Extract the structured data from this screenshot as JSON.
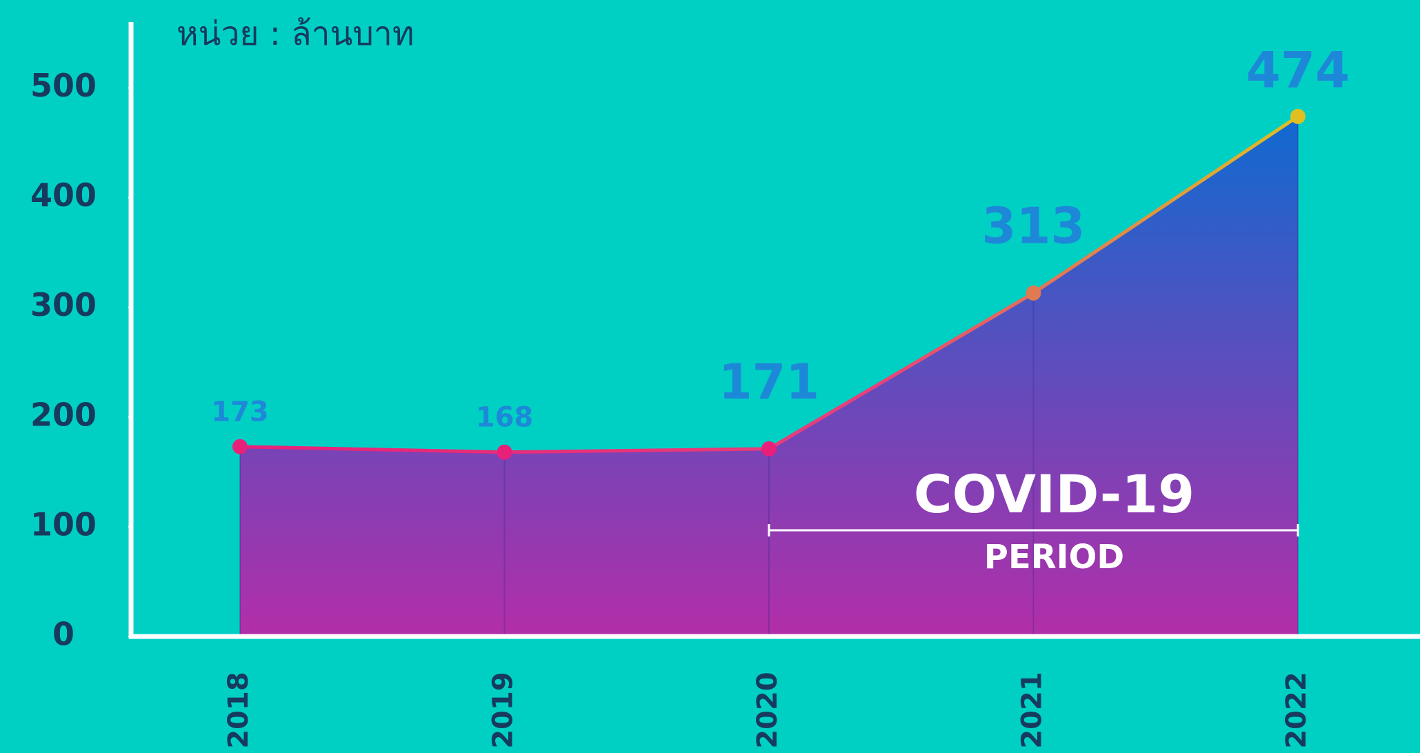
{
  "chart_data": {
    "type": "area",
    "y_label": "หน่วย : ล้านบาท",
    "categories": [
      "2018",
      "2019",
      "2020",
      "2021",
      "2022"
    ],
    "values": [
      173,
      168,
      171,
      313,
      474
    ],
    "point_colors": [
      "#e8207a",
      "#e8207a",
      "#e8207a",
      "#e07a50",
      "#e0c020"
    ],
    "ylim": [
      0,
      560
    ],
    "yticks": [
      0,
      100,
      200,
      300,
      400,
      500
    ],
    "annotation": {
      "label": "COVID-19",
      "sublabel": "PERIOD",
      "span": [
        "2020",
        "2022"
      ]
    }
  }
}
